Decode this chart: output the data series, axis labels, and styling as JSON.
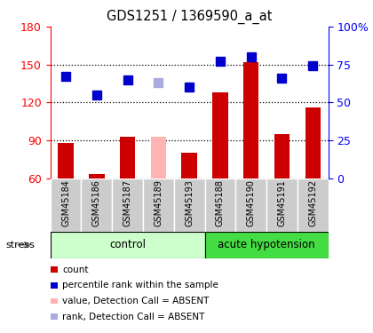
{
  "title": "GDS1251 / 1369590_a_at",
  "samples": [
    "GSM45184",
    "GSM45186",
    "GSM45187",
    "GSM45189",
    "GSM45193",
    "GSM45188",
    "GSM45190",
    "GSM45191",
    "GSM45192"
  ],
  "bar_values": [
    88,
    63,
    93,
    93,
    80,
    128,
    152,
    95,
    116
  ],
  "bar_colors": [
    "#cc0000",
    "#cc0000",
    "#cc0000",
    "#ffb3b3",
    "#cc0000",
    "#cc0000",
    "#cc0000",
    "#cc0000",
    "#cc0000"
  ],
  "rank_values": [
    67,
    55,
    65,
    63,
    60,
    77,
    80,
    66,
    74
  ],
  "rank_colors": [
    "#0000cc",
    "#0000cc",
    "#0000cc",
    "#aaaadd",
    "#0000cc",
    "#0000cc",
    "#0000cc",
    "#0000cc",
    "#0000cc"
  ],
  "ylim_left": [
    60,
    180
  ],
  "ylim_right": [
    0,
    100
  ],
  "yticks_left": [
    60,
    90,
    120,
    150,
    180
  ],
  "ytick_labels_left": [
    "60",
    "90",
    "120",
    "150",
    "180"
  ],
  "yticks_right": [
    0,
    25,
    50,
    75,
    100
  ],
  "ytick_labels_right": [
    "0",
    "25",
    "50",
    "75",
    "100%"
  ],
  "hlines": [
    90,
    120,
    150
  ],
  "group_labels": [
    "control",
    "acute hypotension"
  ],
  "group_colors": [
    "#b3ffb3",
    "#66ee66"
  ],
  "stress_label": "stress",
  "legend_items": [
    {
      "label": "count",
      "color": "#cc0000"
    },
    {
      "label": "percentile rank within the sample",
      "color": "#0000cc"
    },
    {
      "label": "value, Detection Call = ABSENT",
      "color": "#ffb3b3"
    },
    {
      "label": "rank, Detection Call = ABSENT",
      "color": "#aaaadd"
    }
  ],
  "bar_width": 0.5,
  "rank_marker_size": 7,
  "n_control": 5,
  "n_samples": 9
}
